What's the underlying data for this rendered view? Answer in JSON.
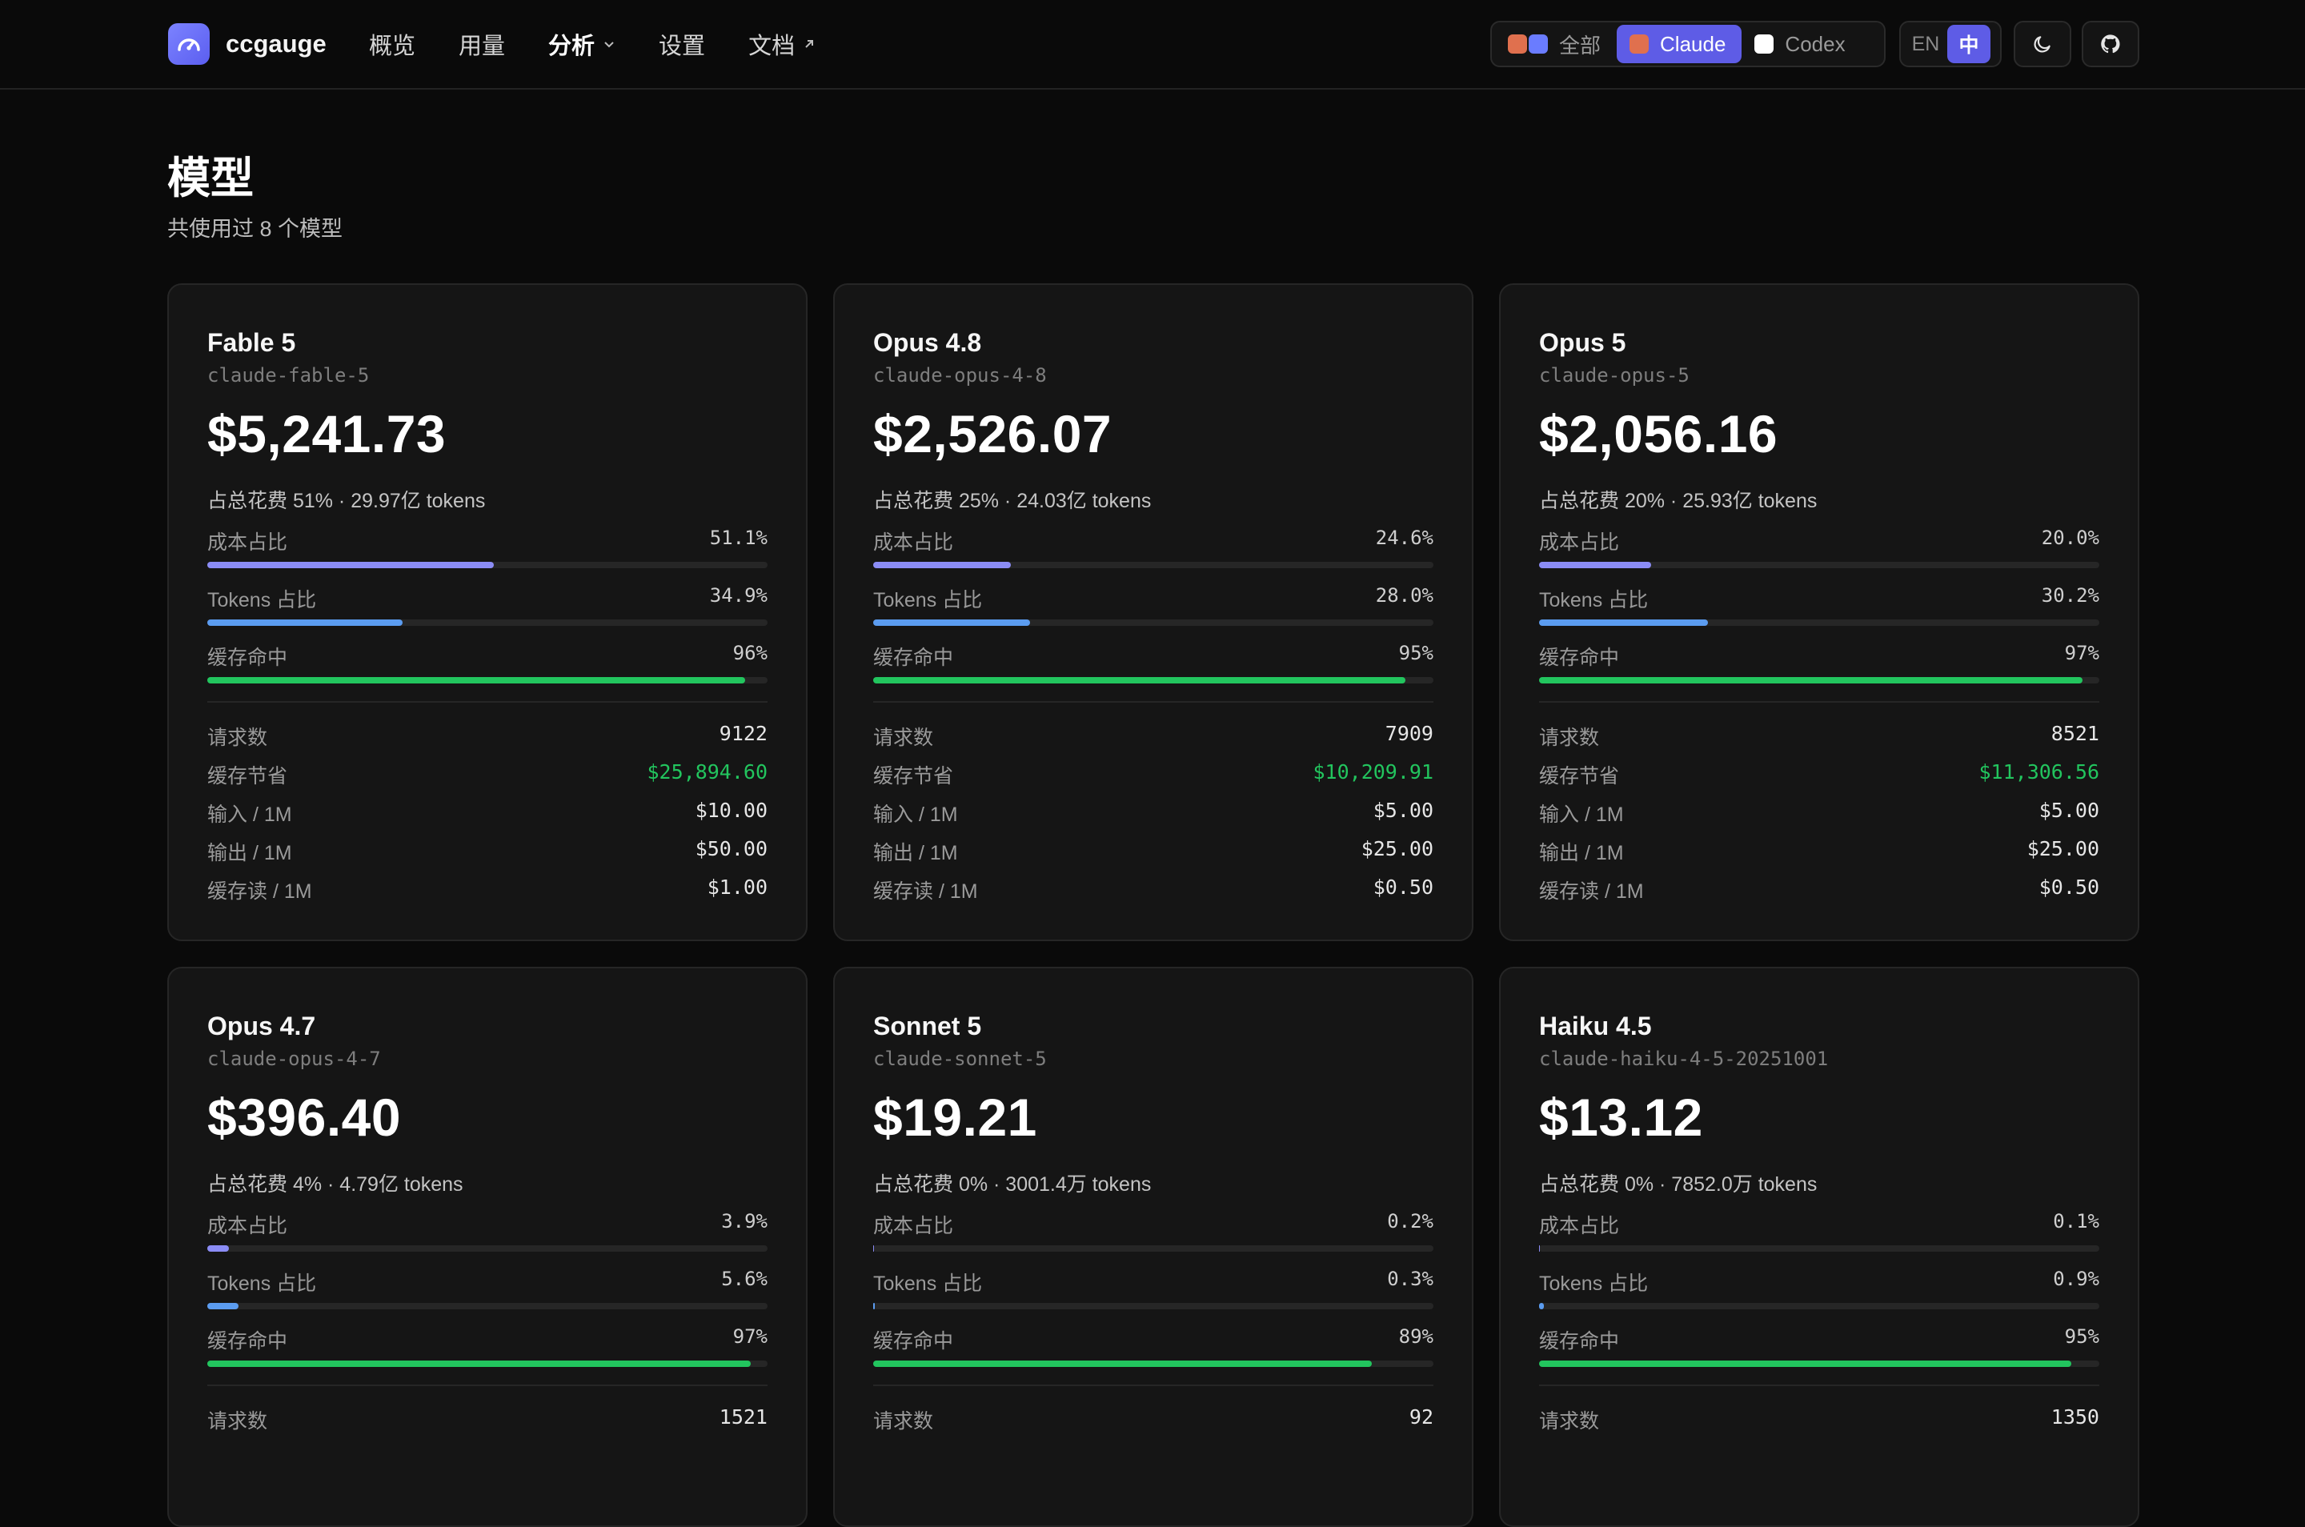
{
  "app": {
    "name": "ccgauge"
  },
  "nav": [
    {
      "label": "概览",
      "active": false
    },
    {
      "label": "用量",
      "active": false
    },
    {
      "label": "分析",
      "active": true
    },
    {
      "label": "设置",
      "active": false
    },
    {
      "label": "文档",
      "active": false
    }
  ],
  "provider_switch": {
    "all": "全部",
    "claude": "Claude",
    "codex": "Codex",
    "selected": "Claude"
  },
  "lang_switch": {
    "en": "EN",
    "zh": "中",
    "selected": "中"
  },
  "icons": {
    "theme": "moon-icon",
    "github": "github-icon"
  },
  "colors": {
    "accent": "#5e5ce6",
    "cost_bar": "#8b8cf5",
    "tokens_bar": "#5b9cf0",
    "cache_bar": "#22c55e",
    "savings": "#22c55e"
  },
  "page": {
    "title": "模型",
    "subtitle": "共使用过 8 个模型"
  },
  "labels": {
    "cost_share": "成本占比",
    "token_share": "Tokens 占比",
    "cache_hit": "缓存命中",
    "requests": "请求数",
    "cache_savings": "缓存节省",
    "input_price": "输入 / 1M",
    "output_price": "输出 / 1M",
    "cache_read_price": "缓存读 / 1M"
  },
  "models": [
    {
      "name": "Fable 5",
      "id": "claude-fable-5",
      "cost": "$5,241.73",
      "summary": "占总花费 51% · 29.97亿 tokens",
      "cost_share": "51.1%",
      "cost_share_value": 51.1,
      "token_share": "34.9%",
      "token_share_value": 34.9,
      "cache_hit": "96%",
      "cache_hit_value": 96,
      "requests": "9122",
      "cache_savings": "$25,894.60",
      "input_price": "$10.00",
      "output_price": "$50.00",
      "cache_read_price": "$1.00"
    },
    {
      "name": "Opus 4.8",
      "id": "claude-opus-4-8",
      "cost": "$2,526.07",
      "summary": "占总花费 25% · 24.03亿 tokens",
      "cost_share": "24.6%",
      "cost_share_value": 24.6,
      "token_share": "28.0%",
      "token_share_value": 28.0,
      "cache_hit": "95%",
      "cache_hit_value": 95,
      "requests": "7909",
      "cache_savings": "$10,209.91",
      "input_price": "$5.00",
      "output_price": "$25.00",
      "cache_read_price": "$0.50"
    },
    {
      "name": "Opus 5",
      "id": "claude-opus-5",
      "cost": "$2,056.16",
      "summary": "占总花费 20% · 25.93亿 tokens",
      "cost_share": "20.0%",
      "cost_share_value": 20.0,
      "token_share": "30.2%",
      "token_share_value": 30.2,
      "cache_hit": "97%",
      "cache_hit_value": 97,
      "requests": "8521",
      "cache_savings": "$11,306.56",
      "input_price": "$5.00",
      "output_price": "$25.00",
      "cache_read_price": "$0.50"
    },
    {
      "name": "Opus 4.7",
      "id": "claude-opus-4-7",
      "cost": "$396.40",
      "summary": "占总花费 4% · 4.79亿 tokens",
      "cost_share": "3.9%",
      "cost_share_value": 3.9,
      "token_share": "5.6%",
      "token_share_value": 5.6,
      "cache_hit": "97%",
      "cache_hit_value": 97,
      "requests": "1521"
    },
    {
      "name": "Sonnet 5",
      "id": "claude-sonnet-5",
      "cost": "$19.21",
      "summary": "占总花费 0% · 3001.4万 tokens",
      "cost_share": "0.2%",
      "cost_share_value": 0.2,
      "token_share": "0.3%",
      "token_share_value": 0.3,
      "cache_hit": "89%",
      "cache_hit_value": 89,
      "requests": "92"
    },
    {
      "name": "Haiku 4.5",
      "id": "claude-haiku-4-5-20251001",
      "cost": "$13.12",
      "summary": "占总花费 0% · 7852.0万 tokens",
      "cost_share": "0.1%",
      "cost_share_value": 0.1,
      "token_share": "0.9%",
      "token_share_value": 0.9,
      "cache_hit": "95%",
      "cache_hit_value": 95,
      "requests": "1350"
    }
  ]
}
